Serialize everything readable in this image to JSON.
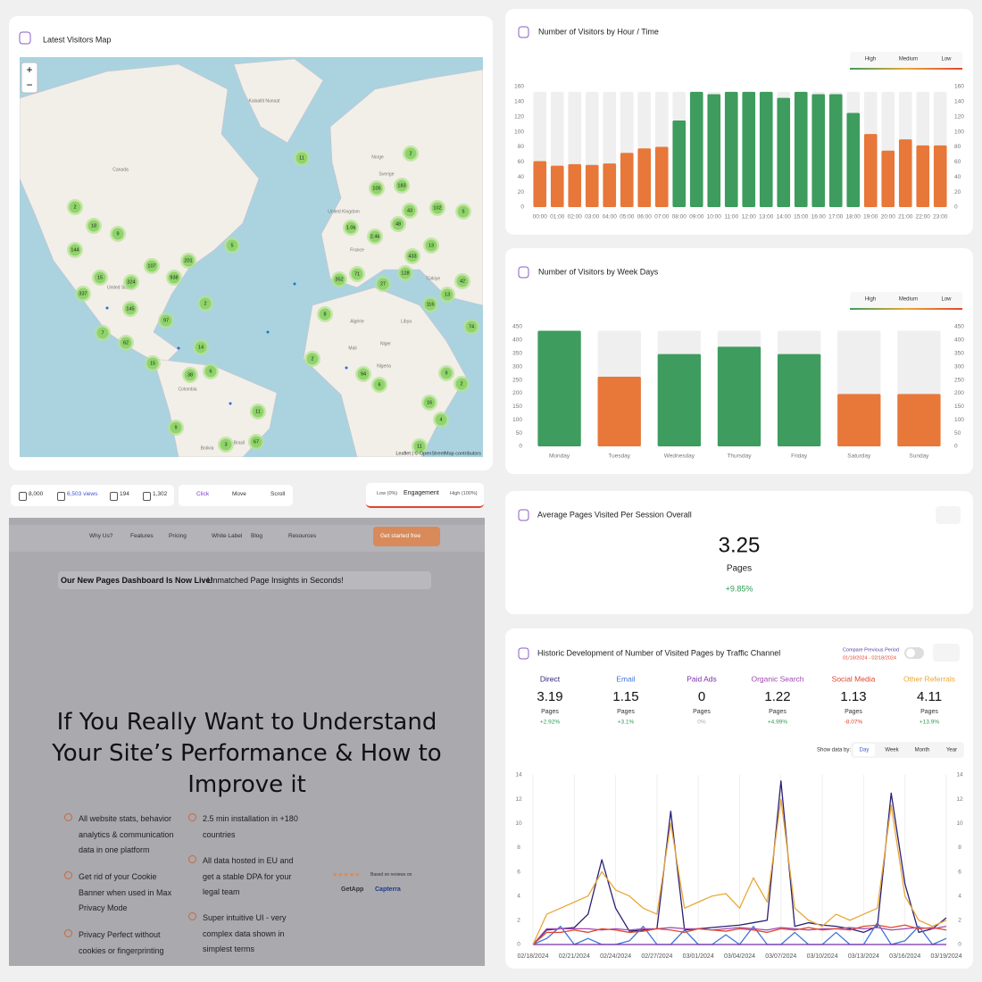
{
  "map": {
    "title": "Latest Visitors Map",
    "zoom_in": "+",
    "zoom_out": "−",
    "attribution": "Leaflet | © OpenStreetMap contributors",
    "places": [
      "Kalaallit Nunaat",
      "Canada",
      "United States",
      "Colombia",
      "Brasil",
      "Bolivia",
      "United Kingdom",
      "France",
      "Sverige",
      "Norge",
      "Algérie",
      "Libya",
      "Mali",
      "Niger",
      "Nigeria",
      "Türkiye"
    ],
    "clusters": [
      11,
      2,
      105,
      183,
      5,
      2,
      18,
      9,
      43,
      102,
      48,
      "1.0k",
      "2.4k",
      13,
      5,
      144,
      433,
      201,
      107,
      71,
      128,
      352,
      15,
      324,
      938,
      27,
      42,
      337,
      13,
      116,
      2,
      145,
      8,
      97,
      74,
      7,
      62,
      14,
      15,
      2,
      9,
      38,
      6,
      94,
      2,
      6,
      16,
      11,
      4,
      9,
      3,
      67,
      11
    ]
  },
  "chart_data": [
    {
      "type": "bar",
      "title": "Number of Visitors by Hour / Time",
      "categories": [
        "00:00",
        "01:00",
        "02:00",
        "03:00",
        "04:00",
        "05:00",
        "06:00",
        "07:00",
        "08:00",
        "09:00",
        "10:00",
        "11:00",
        "12:00",
        "13:00",
        "14:00",
        "15:00",
        "16:00",
        "17:00",
        "18:00",
        "19:00",
        "20:00",
        "21:00",
        "22:00",
        "23:00"
      ],
      "values": [
        61,
        55,
        57,
        56,
        58,
        72,
        78,
        80,
        115,
        153,
        150,
        153,
        153,
        153,
        145,
        153,
        150,
        150,
        125,
        97,
        75,
        90,
        82,
        82
      ],
      "colors": [
        "#e8773a",
        "#e8773a",
        "#e8773a",
        "#e8773a",
        "#e8773a",
        "#e8773a",
        "#e8773a",
        "#e8773a",
        "#3d9c5e",
        "#3d9c5e",
        "#3d9c5e",
        "#3d9c5e",
        "#3d9c5e",
        "#3d9c5e",
        "#3d9c5e",
        "#3d9c5e",
        "#3d9c5e",
        "#3d9c5e",
        "#3d9c5e",
        "#e8773a",
        "#e8773a",
        "#e8773a",
        "#e8773a",
        "#e8773a"
      ],
      "legend": [
        "High",
        "Medium",
        "Low"
      ],
      "ylim": [
        0,
        160
      ],
      "yticks": [
        0,
        20,
        40,
        60,
        80,
        100,
        120,
        140,
        160
      ]
    },
    {
      "type": "bar",
      "title": "Number of Visitors by Week Days",
      "categories": [
        "Monday",
        "Tuesday",
        "Wednesday",
        "Thursday",
        "Friday",
        "Saturday",
        "Sunday"
      ],
      "values": [
        435,
        262,
        347,
        375,
        347,
        197,
        197
      ],
      "colors": [
        "#3d9c5e",
        "#e8773a",
        "#3d9c5e",
        "#3d9c5e",
        "#3d9c5e",
        "#e8773a",
        "#e8773a"
      ],
      "legend": [
        "High",
        "Medium",
        "Low"
      ],
      "ylim": [
        0,
        450
      ],
      "yticks": [
        0,
        50,
        100,
        150,
        200,
        250,
        300,
        350,
        400,
        450
      ]
    },
    {
      "type": "line",
      "title": "Historic Development of Number of Visited Pages by Traffic Channel",
      "compare_label": "Compare Previous Period",
      "compare_range": "01/18/2024 - 02/18/2024",
      "show_by_label": "Show data by:",
      "show_by_options": [
        "Day",
        "Week",
        "Month",
        "Year"
      ],
      "categories": [
        "02/18/2024",
        null,
        null,
        "02/21/2024",
        null,
        null,
        "02/24/2024",
        null,
        null,
        "02/27/2024",
        null,
        null,
        "03/01/2024",
        null,
        null,
        "03/04/2024",
        null,
        null,
        "03/07/2024",
        null,
        null,
        "03/10/2024",
        null,
        null,
        "03/13/2024",
        null,
        null,
        "03/16/2024",
        null,
        null,
        "03/19/2024"
      ],
      "ylim": [
        0,
        14
      ],
      "yticks": [
        0,
        2,
        4,
        6,
        8,
        10,
        12,
        14
      ],
      "series": [
        {
          "name": "Direct",
          "color": "#2a1f73",
          "average": 3.19,
          "unit": "Pages",
          "change": "+2.92%",
          "values": [
            0,
            1.2,
            1.3,
            1.4,
            2.5,
            7,
            3,
            1.1,
            1.2,
            1.3,
            11,
            1.2,
            1.3,
            1.4,
            1.5,
            1.6,
            1.8,
            2,
            13.5,
            1.5,
            1.8,
            1.6,
            1.5,
            1.3,
            1,
            1.5,
            12.5,
            5,
            1,
            1.3,
            2.2
          ]
        },
        {
          "name": "Email",
          "color": "#3f74d6",
          "average": 1.15,
          "unit": "Pages",
          "change": "+3.1%",
          "values": [
            0,
            0.5,
            1.5,
            0,
            0.5,
            0,
            0,
            0.3,
            1.5,
            0,
            0,
            1.2,
            0,
            0,
            0.8,
            0,
            1.5,
            0,
            0,
            1,
            0,
            0,
            1,
            0,
            0,
            1.8,
            0,
            0.3,
            1.5,
            0,
            0.5
          ]
        },
        {
          "name": "Paid Ads",
          "color": "#7a2fa8",
          "average": 0,
          "unit": "Pages",
          "change": "0%",
          "values": [
            0,
            0,
            0,
            0,
            0,
            0,
            0,
            0,
            0,
            0,
            0,
            0,
            0,
            0,
            0,
            0,
            0,
            0,
            0,
            0,
            0,
            0,
            0,
            0,
            0,
            0,
            0,
            0,
            0,
            0,
            0
          ]
        },
        {
          "name": "Organic Search",
          "color": "#a04ab0",
          "average": 1.22,
          "unit": "Pages",
          "change": "+4.99%",
          "values": [
            0,
            1.3,
            1.3,
            1.3,
            1.3,
            1.2,
            1.3,
            1.2,
            1.3,
            1.3,
            1.4,
            1.3,
            1.3,
            1.2,
            1.3,
            1.4,
            1.3,
            1.2,
            1.4,
            1.3,
            1.2,
            1.3,
            1.3,
            1.4,
            1.3,
            1.4,
            1.2,
            1.3,
            1.4,
            1.3,
            1.5
          ]
        },
        {
          "name": "Social Media",
          "color": "#e0452e",
          "average": 1.13,
          "unit": "Pages",
          "change": "-8.07%",
          "values": [
            0,
            1,
            1,
            1.2,
            1,
            1.3,
            1.2,
            1,
            1.1,
            1.3,
            1.2,
            1,
            1.3,
            1.2,
            1.1,
            1.3,
            1.2,
            1,
            1.3,
            1.2,
            1.4,
            1.2,
            1.3,
            1.2,
            1.5,
            1.6,
            1.4,
            1.6,
            1.3,
            1.4,
            1.2
          ]
        },
        {
          "name": "Other Referrals",
          "color": "#e8a838",
          "average": 4.11,
          "unit": "Pages",
          "change": "+13.9%",
          "values": [
            0,
            2.5,
            3,
            3.5,
            4,
            6,
            4.5,
            4,
            3,
            2.5,
            10,
            3,
            3.5,
            4,
            4.2,
            3,
            5.5,
            3.5,
            12,
            3,
            2,
            1.5,
            2.5,
            2,
            2.5,
            3,
            11.5,
            4,
            2,
            1.5,
            2
          ]
        }
      ]
    }
  ],
  "kpi": {
    "title": "Average Pages Visited Per Session Overall",
    "value": 3.25,
    "unit": "Pages",
    "change": "+9.85%"
  },
  "heatmap": {
    "stats": [
      "8,000",
      "6,503 views",
      "194",
      "1,302"
    ],
    "modes": [
      "Click",
      "Move",
      "Scroll"
    ],
    "engagement": {
      "low": "Low (0%)",
      "label": "Engagement",
      "high": "High (100%)"
    },
    "site": {
      "nav": [
        "Why Us?",
        "Features",
        "Pricing",
        "White Label",
        "Blog",
        "Resources"
      ],
      "cta": "Get started free",
      "banner_bold": "Our New Pages Dashboard Is Now Live!",
      "banner_text": "Unmatched Page Insights in Seconds!",
      "headline": "If You Really Want to Understand Your Site’s Performance & How to Improve it",
      "bullets": [
        "All website stats, behavior analytics & communication data in one platform",
        "Get rid of your Cookie Banner when used in Max Privacy Mode",
        "Privacy Perfect without cookies or fingerprinting",
        "2.5 min installation in +180 countries",
        "All data hosted in EU and get a stable DPA for your legal team",
        "Super intuitive UI - very complex data shown in simplest terms"
      ],
      "reviews": {
        "stars": "★★★★★",
        "text": "Based on reviews on",
        "sites": [
          "GetApp",
          "Capterra"
        ]
      }
    }
  }
}
